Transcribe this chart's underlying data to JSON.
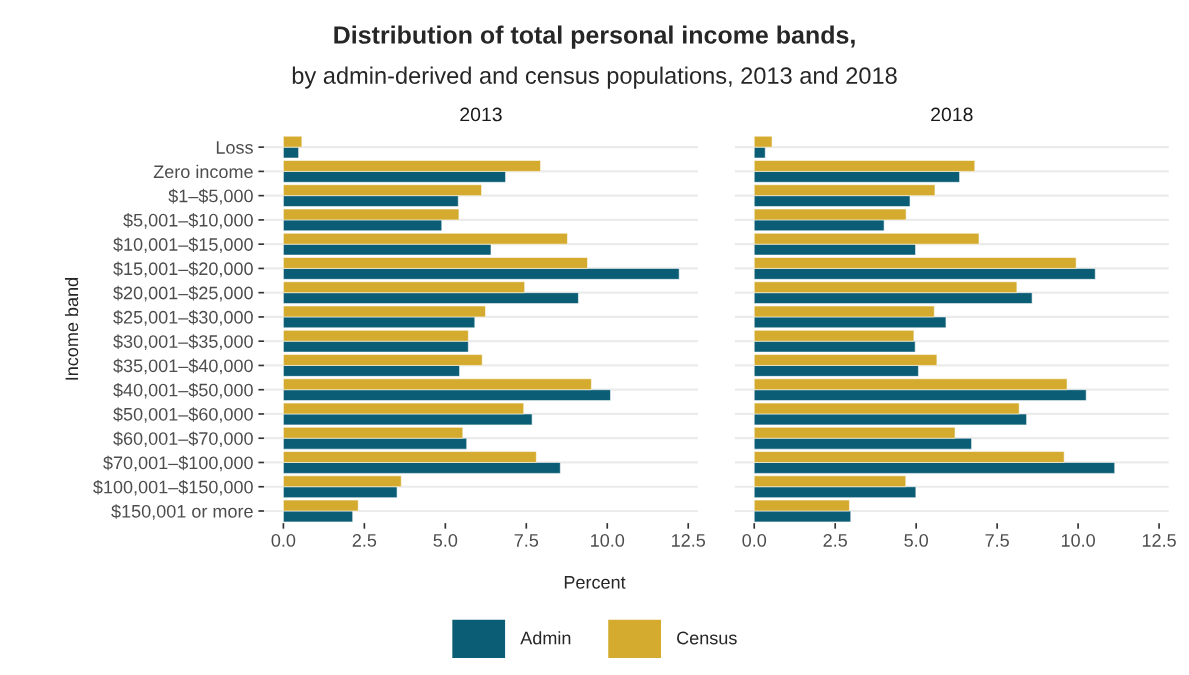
{
  "chart_data": [
    {
      "type": "bar",
      "orientation": "horizontal",
      "title": "2013",
      "annotations": [
        "Distribution of total personal income bands,",
        "by admin-derived and census populations, 2013 and 2018"
      ],
      "xlabel": "Percent",
      "ylabel": "Income band",
      "categories": [
        "Loss",
        "Zero income",
        "$1–$5,000",
        "$5,001–$10,000",
        "$10,001–$15,000",
        "$15,001–$20,000",
        "$20,001–$25,000",
        "$25,001–$30,000",
        "$30,001–$35,000",
        "$35,001–$40,000",
        "$40,001–$50,000",
        "$50,001–$60,000",
        "$60,001–$70,000",
        "$70,001–$100,000",
        "$100,001–$150,000",
        "$150,001 or more"
      ],
      "series": [
        {
          "name": "Admin",
          "color": "#0b5d75",
          "values": [
            0.47,
            6.86,
            5.4,
            4.89,
            6.41,
            12.22,
            9.11,
            5.91,
            5.71,
            5.44,
            10.1,
            7.68,
            5.66,
            8.55,
            3.51,
            2.14
          ]
        },
        {
          "name": "Census",
          "color": "#d4ab2e",
          "values": [
            0.57,
            7.94,
            6.12,
            5.42,
            8.77,
            9.39,
            7.45,
            6.24,
            5.71,
            6.14,
            9.51,
            7.42,
            5.54,
            7.81,
            3.64,
            2.31
          ]
        }
      ],
      "xlim": [
        -0.6,
        12.8
      ],
      "xticks": [
        {
          "value": 0,
          "label": "0.0"
        },
        2.5,
        {
          "value": 5,
          "label": "5.0"
        },
        7.5,
        {
          "value": 10,
          "label": "10.0"
        },
        12.5
      ],
      "grid": "y",
      "legend": "bottom"
    },
    {
      "type": "bar",
      "orientation": "horizontal",
      "title": "2018",
      "categories": [
        "Loss",
        "Zero income",
        "$1–$5,000",
        "$5,001–$10,000",
        "$10,001–$15,000",
        "$15,001–$20,000",
        "$20,001–$25,000",
        "$25,001–$30,000",
        "$30,001–$35,000",
        "$35,001–$40,000",
        "$40,001–$50,000",
        "$50,001–$60,000",
        "$60,001–$70,000",
        "$70,001–$100,000",
        "$100,001–$150,000",
        "$150,001 or more"
      ],
      "series": [
        {
          "name": "Admin",
          "color": "#0b5d75",
          "values": [
            0.34,
            6.34,
            4.81,
            4.01,
            4.98,
            10.53,
            8.58,
            5.92,
            4.97,
            5.07,
            10.25,
            8.41,
            6.71,
            11.13,
            4.99,
            2.98
          ]
        },
        {
          "name": "Census",
          "color": "#d4ab2e",
          "values": [
            0.55,
            6.81,
            5.58,
            4.69,
            6.94,
            9.94,
            8.11,
            5.56,
            4.93,
            5.64,
            9.66,
            8.18,
            6.2,
            9.57,
            4.68,
            2.94
          ]
        }
      ],
      "xlim": [
        -0.6,
        12.8
      ],
      "xticks": [
        {
          "value": 0,
          "label": "0.0"
        },
        2.5,
        {
          "value": 5,
          "label": "5.0"
        },
        7.5,
        {
          "value": 10,
          "label": "10.0"
        },
        12.5
      ],
      "grid": "y",
      "tick_labels": "x"
    }
  ]
}
